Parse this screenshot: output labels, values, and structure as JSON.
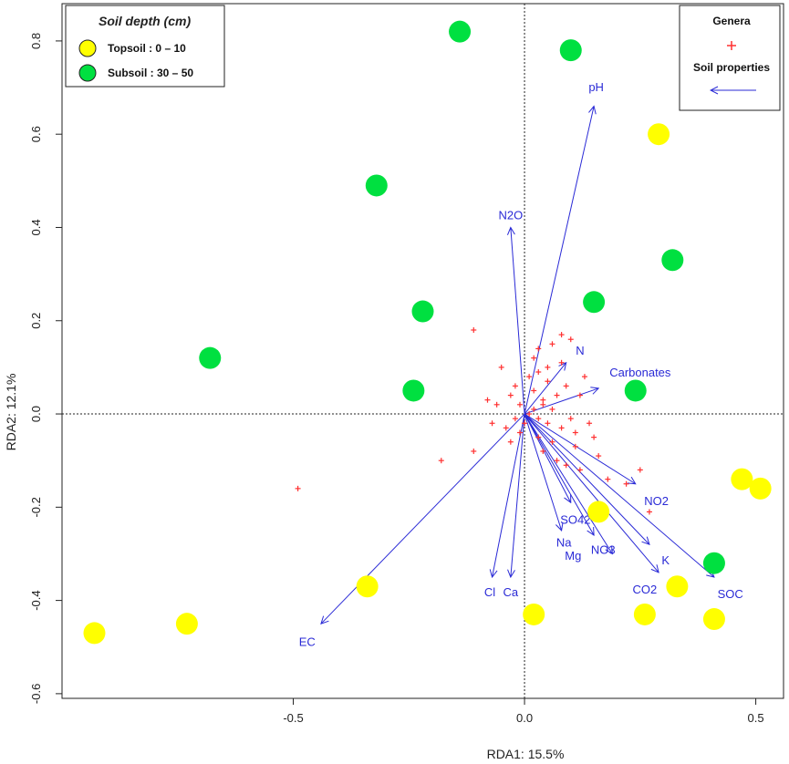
{
  "chart_data": {
    "type": "scatter",
    "subtype": "rda-biplot",
    "xlabel": "RDA1: 15.5%",
    "ylabel": "RDA2: 12.1%",
    "xlim": [
      -1.0,
      0.56
    ],
    "ylim": [
      -0.61,
      0.88
    ],
    "x_ticks": [
      -0.5,
      0.0,
      0.5
    ],
    "x_tick_labels": [
      "-0.5",
      "0.0",
      "0.5"
    ],
    "y_ticks": [
      -0.6,
      -0.4,
      -0.2,
      0.0,
      0.2,
      0.4,
      0.6,
      0.8
    ],
    "y_tick_labels": [
      "-0.6",
      "-0.4",
      "-0.2",
      "0.0",
      "0.2",
      "0.4",
      "0.6",
      "0.8"
    ],
    "colors": {
      "topsoil": "#ffff00",
      "subsoil": "#00e040",
      "vector": "#2a2ad6",
      "genera": "#ff3030"
    },
    "depth_legend": {
      "title": "Soil depth (cm)",
      "entries": [
        {
          "label": "Topsoil : 0 – 10",
          "group": "topsoil"
        },
        {
          "label": "Subsoil : 30 – 50",
          "group": "subsoil"
        }
      ]
    },
    "symbol_legend": {
      "entries": [
        {
          "label": "Genera",
          "symbol": "plus"
        },
        {
          "label": "Soil properties",
          "symbol": "arrow"
        }
      ]
    },
    "samples": [
      {
        "group": "topsoil",
        "x": 0.29,
        "y": 0.6
      },
      {
        "group": "topsoil",
        "x": 0.47,
        "y": -0.14
      },
      {
        "group": "topsoil",
        "x": 0.51,
        "y": -0.16
      },
      {
        "group": "topsoil",
        "x": 0.16,
        "y": -0.21
      },
      {
        "group": "topsoil",
        "x": 0.33,
        "y": -0.37
      },
      {
        "group": "topsoil",
        "x": 0.26,
        "y": -0.43
      },
      {
        "group": "topsoil",
        "x": 0.41,
        "y": -0.44
      },
      {
        "group": "topsoil",
        "x": 0.02,
        "y": -0.43
      },
      {
        "group": "topsoil",
        "x": -0.34,
        "y": -0.37
      },
      {
        "group": "topsoil",
        "x": -0.73,
        "y": -0.45
      },
      {
        "group": "topsoil",
        "x": -0.93,
        "y": -0.47
      },
      {
        "group": "subsoil",
        "x": -0.14,
        "y": 0.82
      },
      {
        "group": "subsoil",
        "x": 0.1,
        "y": 0.78
      },
      {
        "group": "subsoil",
        "x": -0.32,
        "y": 0.49
      },
      {
        "group": "subsoil",
        "x": 0.32,
        "y": 0.33
      },
      {
        "group": "subsoil",
        "x": -0.22,
        "y": 0.22
      },
      {
        "group": "subsoil",
        "x": 0.15,
        "y": 0.24
      },
      {
        "group": "subsoil",
        "x": -0.68,
        "y": 0.12
      },
      {
        "group": "subsoil",
        "x": -0.24,
        "y": 0.05
      },
      {
        "group": "subsoil",
        "x": 0.24,
        "y": 0.05
      },
      {
        "group": "subsoil",
        "x": 0.41,
        "y": -0.32
      }
    ],
    "vectors": [
      {
        "label": "pH",
        "x": 0.15,
        "y": 0.66,
        "lx": 0.155,
        "ly": 0.7
      },
      {
        "label": "N2O",
        "x": -0.03,
        "y": 0.4,
        "lx": -0.03,
        "ly": 0.425
      },
      {
        "label": "N",
        "x": 0.09,
        "y": 0.11,
        "lx": 0.12,
        "ly": 0.135
      },
      {
        "label": "Carbonates",
        "x": 0.16,
        "y": 0.055,
        "lx": 0.25,
        "ly": 0.088
      },
      {
        "label": "NO2",
        "x": 0.24,
        "y": -0.15,
        "lx": 0.285,
        "ly": -0.188
      },
      {
        "label": "SO42",
        "x": 0.1,
        "y": -0.19,
        "lx": 0.11,
        "ly": -0.228
      },
      {
        "label": "Na",
        "x": 0.08,
        "y": -0.25,
        "lx": 0.085,
        "ly": -0.277
      },
      {
        "label": "Mg",
        "x": 0.15,
        "y": -0.26,
        "lx": 0.105,
        "ly": -0.305
      },
      {
        "label": "NO3",
        "x": 0.19,
        "y": -0.3,
        "lx": 0.17,
        "ly": -0.292
      },
      {
        "label": "K",
        "x": 0.27,
        "y": -0.28,
        "lx": 0.305,
        "ly": -0.315
      },
      {
        "label": "CO2",
        "x": 0.29,
        "y": -0.34,
        "lx": 0.26,
        "ly": -0.377
      },
      {
        "label": "SOC",
        "x": 0.41,
        "y": -0.35,
        "lx": 0.445,
        "ly": -0.387
      },
      {
        "label": "Cl",
        "x": -0.07,
        "y": -0.35,
        "lx": -0.075,
        "ly": -0.383
      },
      {
        "label": "Ca",
        "x": -0.03,
        "y": -0.35,
        "lx": -0.03,
        "ly": -0.383
      },
      {
        "label": "EC",
        "x": -0.44,
        "y": -0.45,
        "lx": -0.47,
        "ly": -0.49
      }
    ],
    "genera": [
      [
        0.01,
        0.0
      ],
      [
        0.02,
        0.01
      ],
      [
        -0.01,
        0.02
      ],
      [
        0.03,
        -0.01
      ],
      [
        0.0,
        -0.02
      ],
      [
        -0.02,
        -0.01
      ],
      [
        0.04,
        0.03
      ],
      [
        0.02,
        0.05
      ],
      [
        -0.03,
        0.04
      ],
      [
        0.05,
        -0.02
      ],
      [
        0.06,
        0.01
      ],
      [
        0.03,
        -0.05
      ],
      [
        -0.04,
        -0.03
      ],
      [
        0.01,
        0.08
      ],
      [
        0.05,
        0.07
      ],
      [
        0.07,
        0.04
      ],
      [
        0.08,
        -0.03
      ],
      [
        0.1,
        -0.01
      ],
      [
        0.04,
        -0.08
      ],
      [
        0.06,
        -0.06
      ],
      [
        -0.06,
        0.02
      ],
      [
        -0.07,
        -0.02
      ],
      [
        0.02,
        0.12
      ],
      [
        0.06,
        0.15
      ],
      [
        0.08,
        0.17
      ],
      [
        0.1,
        0.16
      ],
      [
        0.03,
        0.14
      ],
      [
        0.12,
        0.04
      ],
      [
        0.14,
        -0.02
      ],
      [
        0.11,
        -0.07
      ],
      [
        0.09,
        -0.11
      ],
      [
        0.12,
        -0.12
      ],
      [
        0.16,
        -0.09
      ],
      [
        0.18,
        -0.14
      ],
      [
        0.22,
        -0.15
      ],
      [
        0.25,
        -0.12
      ],
      [
        0.27,
        -0.21
      ],
      [
        -0.11,
        0.18
      ],
      [
        -0.11,
        -0.08
      ],
      [
        -0.18,
        -0.1
      ],
      [
        -0.49,
        -0.16
      ],
      [
        0.05,
        0.1
      ],
      [
        -0.02,
        0.06
      ],
      [
        0.13,
        0.08
      ],
      [
        -0.05,
        0.1
      ],
      [
        0.07,
        -0.1
      ],
      [
        0.15,
        -0.05
      ],
      [
        -0.03,
        -0.06
      ],
      [
        0.09,
        0.06
      ],
      [
        0.04,
        0.02
      ],
      [
        -0.01,
        -0.04
      ],
      [
        0.03,
        0.09
      ],
      [
        0.08,
        0.11
      ],
      [
        0.11,
        -0.04
      ],
      [
        -0.08,
        0.03
      ]
    ]
  }
}
